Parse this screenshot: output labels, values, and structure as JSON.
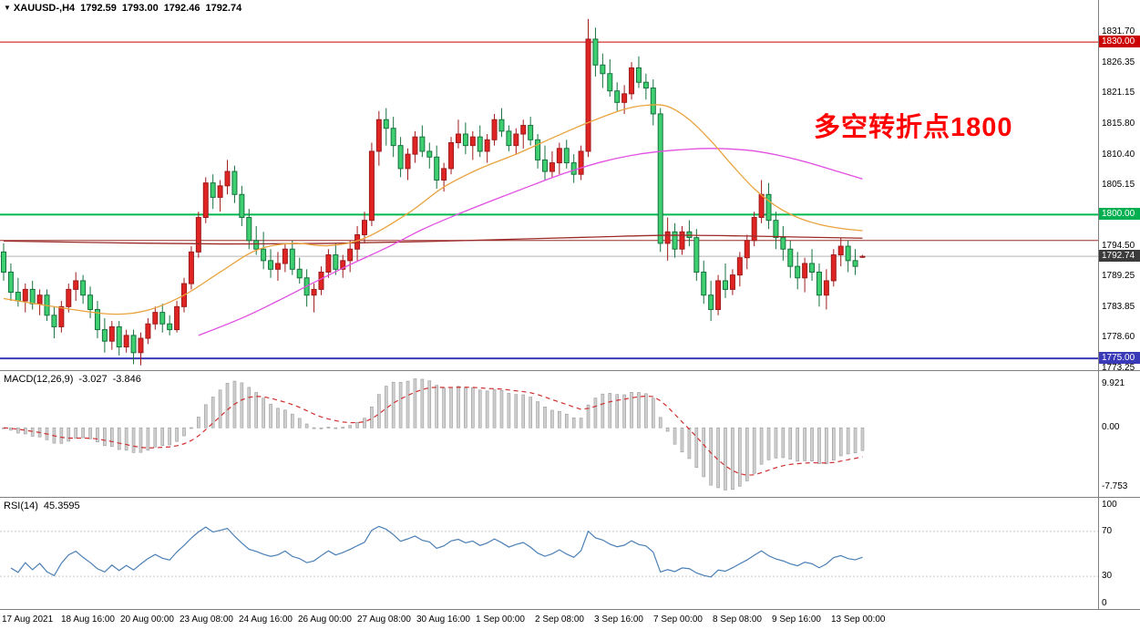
{
  "header": {
    "dropdown_icon": "▼",
    "symbol": "XAUUSD-,H4",
    "open": "1792.59",
    "high": "1793.00",
    "low": "1792.46",
    "close": "1792.74"
  },
  "annotation": {
    "text": "多空转折点1800"
  },
  "colors": {
    "up": "#df2423",
    "up_border": "#9e1b1b",
    "down": "#3ecf70",
    "down_border": "#17723f",
    "line_1830": "#cc0000",
    "line_1800": "#00b84e",
    "line_1775": "#3a3ab8",
    "line_maroon": "#9c2b27",
    "ma_orange": "#e8a33d",
    "ma_magenta": "#e14fe1",
    "ma_maroon": "#9c2b27",
    "current_price_line": "#b5b5b5",
    "current_badge_bg": "#3b3b3b",
    "badge_1830_bg": "#cc0000",
    "badge_1800_bg": "#00b050",
    "badge_1775_bg": "#3a3ab8",
    "macd_hist": "#cfcfcf",
    "macd_hist_border": "#9a9a9a",
    "macd_signal": "#cf2e2e",
    "rsi_line": "#4a7fb5",
    "level_dotted": "#c8c8c8",
    "panel_border": "#808080",
    "annotation_color": "#ff0000"
  },
  "chart_data": [
    {
      "type": "candlestick",
      "symbol": "XAUUSD-",
      "timeframe": "H4",
      "ylim": [
        1772.8,
        1837.3
      ],
      "ohlc": [
        [
          1793.5,
          1795.0,
          1788.5,
          1790.0
        ],
        [
          1790.0,
          1791.5,
          1785.0,
          1786.5
        ],
        [
          1786.5,
          1789.0,
          1784.0,
          1785.0
        ],
        [
          1785.0,
          1788.0,
          1783.0,
          1787.0
        ],
        [
          1787.0,
          1788.5,
          1783.5,
          1784.5
        ],
        [
          1784.5,
          1787.0,
          1782.5,
          1786.0
        ],
        [
          1786.0,
          1787.0,
          1781.5,
          1782.5
        ],
        [
          1782.5,
          1784.0,
          1778.5,
          1780.5
        ],
        [
          1780.5,
          1785.0,
          1779.5,
          1784.0
        ],
        [
          1784.0,
          1788.0,
          1783.0,
          1787.0
        ],
        [
          1787.0,
          1790.0,
          1785.0,
          1788.5
        ],
        [
          1788.5,
          1789.5,
          1784.5,
          1786.0
        ],
        [
          1786.0,
          1787.5,
          1782.0,
          1783.5
        ],
        [
          1783.5,
          1785.0,
          1778.5,
          1780.0
        ],
        [
          1780.0,
          1782.0,
          1776.0,
          1778.0
        ],
        [
          1778.0,
          1781.5,
          1776.5,
          1780.5
        ],
        [
          1780.5,
          1781.5,
          1775.5,
          1777.0
        ],
        [
          1777.0,
          1780.0,
          1776.0,
          1779.0
        ],
        [
          1779.0,
          1780.0,
          1774.0,
          1776.0
        ],
        [
          1776.0,
          1779.5,
          1773.8,
          1778.5
        ],
        [
          1778.5,
          1782.0,
          1777.5,
          1781.0
        ],
        [
          1781.0,
          1784.0,
          1780.0,
          1783.0
        ],
        [
          1783.0,
          1784.5,
          1779.5,
          1781.0
        ],
        [
          1781.0,
          1782.5,
          1779.0,
          1780.0
        ],
        [
          1780.0,
          1785.0,
          1779.5,
          1784.0
        ],
        [
          1784.0,
          1789.0,
          1783.0,
          1788.0
        ],
        [
          1788.0,
          1794.5,
          1787.0,
          1793.5
        ],
        [
          1793.5,
          1800.5,
          1792.5,
          1799.5
        ],
        [
          1799.5,
          1806.5,
          1798.5,
          1805.5
        ],
        [
          1805.5,
          1807.0,
          1801.0,
          1803.0
        ],
        [
          1803.0,
          1806.0,
          1800.5,
          1805.0
        ],
        [
          1805.0,
          1809.5,
          1803.5,
          1807.5
        ],
        [
          1807.5,
          1808.5,
          1802.0,
          1803.5
        ],
        [
          1803.5,
          1805.0,
          1798.0,
          1799.5
        ],
        [
          1799.5,
          1801.0,
          1794.0,
          1795.5
        ],
        [
          1795.5,
          1798.0,
          1793.0,
          1794.0
        ],
        [
          1794.0,
          1797.0,
          1790.5,
          1792.0
        ],
        [
          1792.0,
          1794.0,
          1789.0,
          1790.5
        ],
        [
          1790.5,
          1793.5,
          1788.5,
          1791.5
        ],
        [
          1791.5,
          1795.0,
          1790.0,
          1794.0
        ],
        [
          1794.0,
          1795.5,
          1789.5,
          1790.5
        ],
        [
          1790.5,
          1792.5,
          1788.0,
          1789.0
        ],
        [
          1789.0,
          1790.5,
          1784.0,
          1786.0
        ],
        [
          1786.0,
          1788.0,
          1783.0,
          1787.0
        ],
        [
          1787.0,
          1791.0,
          1786.0,
          1790.0
        ],
        [
          1790.0,
          1794.0,
          1789.0,
          1793.0
        ],
        [
          1793.0,
          1795.0,
          1789.5,
          1790.5
        ],
        [
          1790.5,
          1793.0,
          1789.0,
          1792.0
        ],
        [
          1792.0,
          1795.5,
          1790.0,
          1794.0
        ],
        [
          1794.0,
          1798.0,
          1792.0,
          1796.5
        ],
        [
          1796.5,
          1800.5,
          1795.0,
          1799.0
        ],
        [
          1799.0,
          1812.5,
          1798.0,
          1811.0
        ],
        [
          1811.0,
          1818.0,
          1808.5,
          1816.5
        ],
        [
          1816.5,
          1818.5,
          1812.0,
          1815.0
        ],
        [
          1815.0,
          1817.0,
          1810.0,
          1812.0
        ],
        [
          1812.0,
          1813.5,
          1806.5,
          1808.0
        ],
        [
          1808.0,
          1811.5,
          1806.0,
          1810.5
        ],
        [
          1810.5,
          1814.5,
          1809.0,
          1813.5
        ],
        [
          1813.5,
          1815.5,
          1810.0,
          1811.0
        ],
        [
          1811.0,
          1812.5,
          1808.0,
          1810.0
        ],
        [
          1810.0,
          1812.0,
          1804.5,
          1806.0
        ],
        [
          1806.0,
          1809.0,
          1804.0,
          1808.0
        ],
        [
          1808.0,
          1813.5,
          1807.0,
          1812.5
        ],
        [
          1812.5,
          1816.5,
          1811.5,
          1814.0
        ],
        [
          1814.0,
          1816.0,
          1810.5,
          1812.0
        ],
        [
          1812.0,
          1814.5,
          1809.5,
          1813.5
        ],
        [
          1813.5,
          1815.5,
          1810.0,
          1811.0
        ],
        [
          1811.0,
          1814.0,
          1809.0,
          1813.0
        ],
        [
          1813.0,
          1817.5,
          1812.0,
          1816.5
        ],
        [
          1816.5,
          1818.5,
          1813.5,
          1814.5
        ],
        [
          1814.5,
          1815.5,
          1811.0,
          1812.0
        ],
        [
          1812.0,
          1815.0,
          1810.5,
          1814.0
        ],
        [
          1814.0,
          1816.5,
          1811.5,
          1815.5
        ],
        [
          1815.5,
          1817.0,
          1812.0,
          1813.0
        ],
        [
          1813.0,
          1814.0,
          1808.0,
          1809.5
        ],
        [
          1809.5,
          1812.0,
          1806.0,
          1807.5
        ],
        [
          1807.5,
          1811.0,
          1806.5,
          1809.0
        ],
        [
          1809.0,
          1812.5,
          1807.0,
          1811.5
        ],
        [
          1811.5,
          1813.0,
          1808.0,
          1809.0
        ],
        [
          1809.0,
          1810.5,
          1805.5,
          1807.0
        ],
        [
          1807.0,
          1812.0,
          1806.0,
          1811.0
        ],
        [
          1811.0,
          1834.0,
          1810.0,
          1830.5
        ],
        [
          1830.5,
          1832.5,
          1824.0,
          1826.0
        ],
        [
          1826.0,
          1828.0,
          1822.0,
          1824.5
        ],
        [
          1824.5,
          1827.0,
          1820.5,
          1821.5
        ],
        [
          1821.5,
          1823.0,
          1818.0,
          1819.5
        ],
        [
          1819.5,
          1822.5,
          1817.5,
          1821.0
        ],
        [
          1821.0,
          1826.5,
          1820.0,
          1825.5
        ],
        [
          1825.5,
          1827.5,
          1822.0,
          1823.0
        ],
        [
          1823.0,
          1824.5,
          1820.0,
          1822.0
        ],
        [
          1822.0,
          1823.5,
          1815.5,
          1817.5
        ],
        [
          1817.5,
          1818.5,
          1793.5,
          1795.0
        ],
        [
          1795.0,
          1799.5,
          1792.0,
          1797.0
        ],
        [
          1797.0,
          1798.5,
          1792.5,
          1794.0
        ],
        [
          1794.0,
          1798.0,
          1793.0,
          1797.0
        ],
        [
          1797.0,
          1799.0,
          1794.5,
          1796.0
        ],
        [
          1796.0,
          1797.5,
          1788.5,
          1790.0
        ],
        [
          1790.0,
          1792.0,
          1784.5,
          1786.0
        ],
        [
          1786.0,
          1788.5,
          1781.5,
          1783.5
        ],
        [
          1783.5,
          1789.5,
          1782.5,
          1788.5
        ],
        [
          1788.5,
          1791.5,
          1785.5,
          1787.0
        ],
        [
          1787.0,
          1790.5,
          1786.0,
          1789.5
        ],
        [
          1789.5,
          1793.5,
          1787.5,
          1792.5
        ],
        [
          1792.5,
          1796.5,
          1790.5,
          1795.5
        ],
        [
          1795.5,
          1800.5,
          1794.5,
          1799.5
        ],
        [
          1799.5,
          1806.0,
          1798.5,
          1803.5
        ],
        [
          1803.5,
          1805.5,
          1797.5,
          1799.0
        ],
        [
          1799.0,
          1800.5,
          1794.0,
          1796.0
        ],
        [
          1796.0,
          1798.0,
          1792.0,
          1794.0
        ],
        [
          1794.0,
          1795.5,
          1789.0,
          1791.0
        ],
        [
          1791.0,
          1793.5,
          1787.0,
          1789.0
        ],
        [
          1789.0,
          1792.5,
          1786.5,
          1791.5
        ],
        [
          1791.5,
          1794.0,
          1788.5,
          1790.0
        ],
        [
          1790.0,
          1791.5,
          1784.0,
          1786.0
        ],
        [
          1786.0,
          1790.5,
          1783.5,
          1788.5
        ],
        [
          1788.5,
          1794.0,
          1787.5,
          1793.0
        ],
        [
          1793.0,
          1796.0,
          1791.0,
          1794.5
        ],
        [
          1794.5,
          1795.5,
          1790.0,
          1792.0
        ],
        [
          1792.0,
          1794.0,
          1789.5,
          1791.0
        ],
        [
          1792.59,
          1793.0,
          1792.46,
          1792.74
        ]
      ],
      "y_ticks": [
        {
          "label": "1831.70",
          "value": 1831.7
        },
        {
          "label": "1826.35",
          "value": 1826.35
        },
        {
          "label": "1821.15",
          "value": 1821.15
        },
        {
          "label": "1815.80",
          "value": 1815.8
        },
        {
          "label": "1810.40",
          "value": 1810.4
        },
        {
          "label": "1805.15",
          "value": 1805.15
        },
        {
          "label": "1794.50",
          "value": 1794.5
        },
        {
          "label": "1789.25",
          "value": 1789.25
        },
        {
          "label": "1783.85",
          "value": 1783.85
        },
        {
          "label": "1778.60",
          "value": 1778.6
        },
        {
          "label": "1773.25",
          "value": 1773.25
        }
      ],
      "badges": [
        {
          "label": "1830.00",
          "value": 1830.0,
          "color_key": "badge_1830_bg",
          "name": "price-badge-resistance-1830"
        },
        {
          "label": "1800.00",
          "value": 1800.0,
          "color_key": "badge_1800_bg",
          "name": "price-badge-pivot-1800"
        },
        {
          "label": "1792.74",
          "value": 1792.74,
          "color_key": "current_badge_bg",
          "name": "price-badge-current"
        },
        {
          "label": "1775.00",
          "value": 1775.0,
          "color_key": "badge_1775_bg",
          "name": "price-badge-support-1775"
        }
      ],
      "hlines": [
        {
          "value": 1830.0,
          "color_key": "line_1830",
          "width": 1,
          "name": "resistance-line-1830"
        },
        {
          "value": 1800.0,
          "color_key": "line_1800",
          "width": 2,
          "name": "pivot-line-1800"
        },
        {
          "value": 1795.5,
          "color_key": "line_maroon",
          "width": 1,
          "name": "maroon-line-1795"
        },
        {
          "value": 1792.74,
          "color_key": "current_price_line",
          "width": 1,
          "name": "current-price-line"
        },
        {
          "value": 1775.0,
          "color_key": "line_1775",
          "width": 2,
          "name": "support-line-1775"
        }
      ],
      "ma_lines": [
        {
          "name": "ma-slow-maroon",
          "color_key": "ma_maroon",
          "points": [
            [
              0,
              1795.4
            ],
            [
              15,
              1795.1
            ],
            [
              30,
              1794.9
            ],
            [
              45,
              1795.0
            ],
            [
              58,
              1795.3
            ],
            [
              70,
              1795.7
            ],
            [
              82,
              1796.1
            ],
            [
              92,
              1796.4
            ],
            [
              102,
              1796.3
            ],
            [
              110,
              1796.1
            ],
            [
              119,
              1795.9
            ]
          ]
        },
        {
          "name": "ma-mid-magenta",
          "color_key": "ma_magenta",
          "points": [
            [
              27,
              1779.0
            ],
            [
              33,
              1782.0
            ],
            [
              38,
              1785.0
            ],
            [
              43,
              1788.2
            ],
            [
              48,
              1791.3
            ],
            [
              53,
              1794.2
            ],
            [
              58,
              1797.4
            ],
            [
              63,
              1800.1
            ],
            [
              68,
              1802.6
            ],
            [
              73,
              1805.0
            ],
            [
              78,
              1807.3
            ],
            [
              83,
              1809.2
            ],
            [
              88,
              1810.5
            ],
            [
              93,
              1811.2
            ],
            [
              98,
              1811.5
            ],
            [
              103,
              1811.2
            ],
            [
              107,
              1810.4
            ],
            [
              111,
              1809.2
            ],
            [
              115,
              1807.7
            ],
            [
              119,
              1806.2
            ]
          ]
        },
        {
          "name": "ma-fast-orange",
          "color_key": "ma_orange",
          "points": [
            [
              0,
              1785.4
            ],
            [
              8,
              1783.8
            ],
            [
              15,
              1782.7
            ],
            [
              20,
              1783.4
            ],
            [
              25,
              1786.0
            ],
            [
              30,
              1790.0
            ],
            [
              35,
              1793.8
            ],
            [
              40,
              1795.0
            ],
            [
              45,
              1794.6
            ],
            [
              50,
              1795.9
            ],
            [
              56,
              1800.2
            ],
            [
              61,
              1804.8
            ],
            [
              66,
              1808.0
            ],
            [
              71,
              1810.5
            ],
            [
              76,
              1813.3
            ],
            [
              81,
              1816.0
            ],
            [
              86,
              1818.3
            ],
            [
              89,
              1819.0
            ],
            [
              92,
              1818.8
            ],
            [
              95,
              1816.5
            ],
            [
              98,
              1812.8
            ],
            [
              101,
              1808.5
            ],
            [
              104,
              1804.5
            ],
            [
              107,
              1801.5
            ],
            [
              110,
              1799.5
            ],
            [
              113,
              1798.3
            ],
            [
              116,
              1797.6
            ],
            [
              119,
              1797.2
            ]
          ]
        }
      ],
      "time_labels": [
        "17 Aug 2021",
        "18 Aug 16:00",
        "20 Aug 00:00",
        "23 Aug 08:00",
        "24 Aug 16:00",
        "26 Aug 00:00",
        "27 Aug 08:00",
        "30 Aug 16:00",
        "1 Sep 00:00",
        "2 Sep 08:00",
        "3 Sep 16:00",
        "7 Sep 00:00",
        "8 Sep 08:00",
        "9 Sep 16:00",
        "13 Sep 00:00"
      ]
    },
    {
      "type": "macd",
      "name_label": "MACD(12,26,9)",
      "fast": 12,
      "slow": 26,
      "signal": 9,
      "macd_value": "-3.027",
      "signal_value": "-3.846",
      "y_ticks": [
        "9.921",
        "0.00",
        "-7.753"
      ]
    },
    {
      "type": "rsi",
      "name_label": "RSI(14)",
      "period": 14,
      "value": "45.3595",
      "y_ticks": [
        "100",
        "70",
        "30",
        "0"
      ],
      "levels": [
        70,
        30
      ]
    }
  ]
}
